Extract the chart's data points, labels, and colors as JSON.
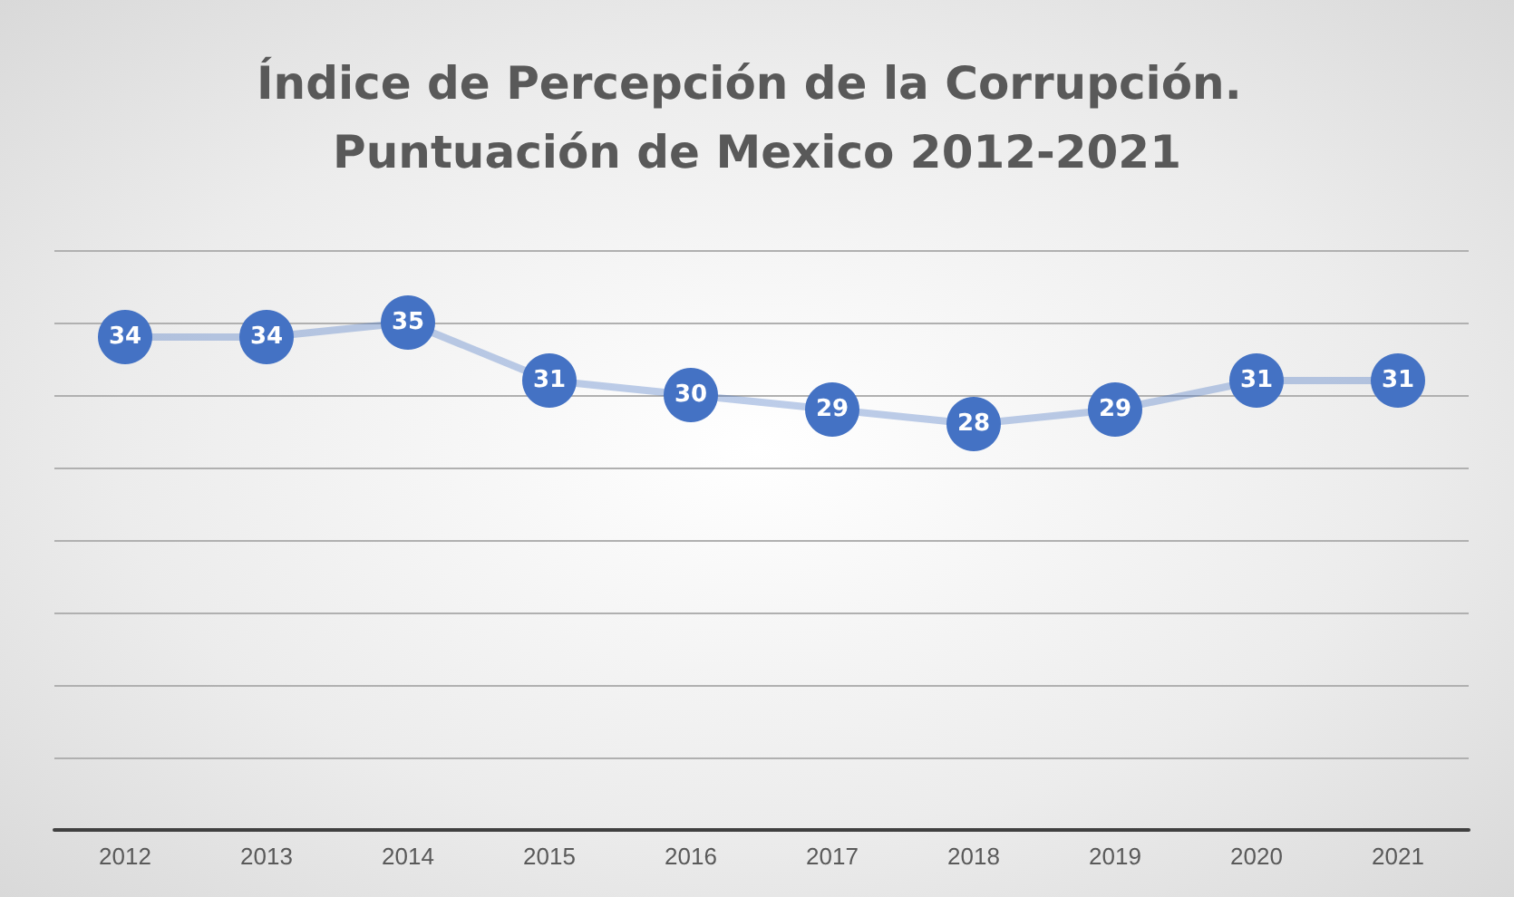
{
  "chart_data": {
    "type": "line",
    "title": "Índice de Percepción de la Corrupción. Puntuación de Mexico 2012-2021",
    "categories": [
      "2012",
      "2013",
      "2014",
      "2015",
      "2016",
      "2017",
      "2018",
      "2019",
      "2020",
      "2021"
    ],
    "series": [
      {
        "color": "#4472c4",
        "values": [
          34,
          34,
          35,
          31,
          30,
          29,
          28,
          29,
          31,
          31
        ]
      }
    ],
    "ylim": [
      0,
      40
    ],
    "yticks": [
      {
        "value": 5,
        "label": null
      },
      {
        "value": 10,
        "label": null
      },
      {
        "value": 15,
        "label": null
      },
      {
        "value": 20,
        "label": null
      },
      {
        "value": 25,
        "label": null
      },
      {
        "value": 30,
        "label": null
      },
      {
        "value": 35,
        "label": null
      },
      {
        "value": 40,
        "label": null
      }
    ],
    "tick_labels": "x",
    "grid": "y",
    "data_labels": true,
    "marker": "circle"
  }
}
